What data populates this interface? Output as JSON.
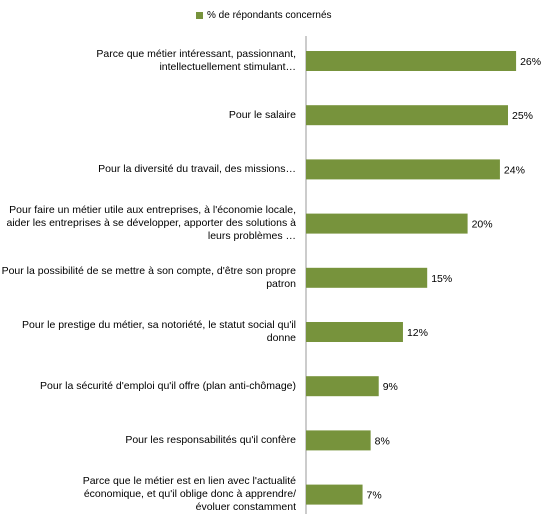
{
  "chart_data": {
    "type": "bar",
    "orientation": "horizontal",
    "legend": {
      "position": "top",
      "label": "% de répondants concernés"
    },
    "series": [
      {
        "name": "% de répondants concernés",
        "color": "#77933c"
      }
    ],
    "categories": [
      "Parce que métier intéressant, passionnant, intellectuellement stimulant…",
      "Pour le salaire",
      "Pour la diversité du travail, des missions…",
      "Pour faire un métier utile aux entreprises, à l'économie locale, aider les entreprises à se développer, apporter des solutions à leurs problèmes …",
      "Pour la possibilité de se mettre à son compte, d'être son propre patron",
      "Pour le prestige du métier, sa notoriété, le statut social qu'il donne",
      "Pour la sécurité d'emploi qu'il offre (plan anti-chômage)",
      "Pour les responsabilités qu'il confère",
      "Parce que le métier est en lien avec l'actualité économique, et qu'il oblige donc à apprendre/évoluer constamment"
    ],
    "values": [
      26,
      25,
      24,
      20,
      15,
      12,
      9,
      8,
      7
    ],
    "value_labels": [
      "26%",
      "25%",
      "24%",
      "20%",
      "15%",
      "12%",
      "9%",
      "8%",
      "7%"
    ],
    "axis": "category axis on left, no value axis shown",
    "grid": false
  }
}
